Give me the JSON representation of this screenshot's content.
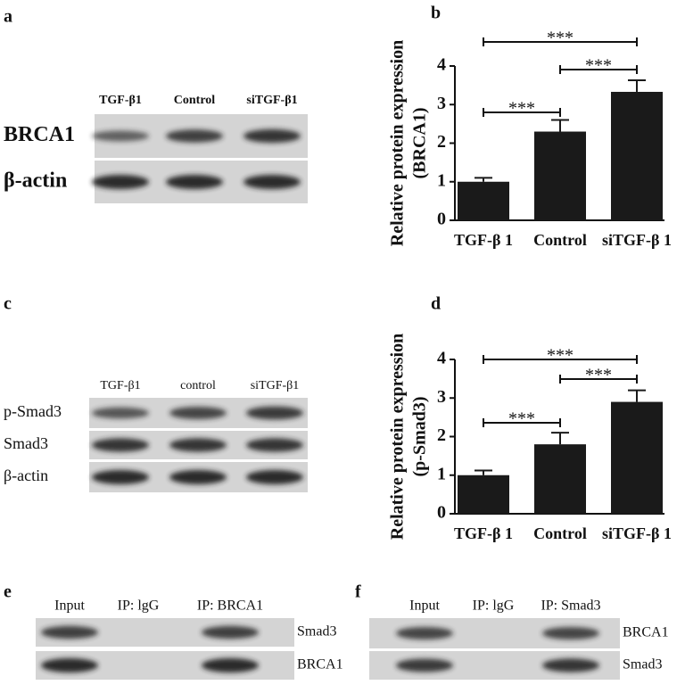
{
  "panels": {
    "a": {
      "label": "a",
      "lanes": [
        "TGF-β1",
        "Control",
        "siTGF-β1"
      ],
      "rows": [
        "BRCA1",
        "β-actin"
      ]
    },
    "c": {
      "label": "c",
      "lanes": [
        "TGF-β1",
        "control",
        "siTGF-β1"
      ],
      "rows": [
        "p-Smad3",
        "Smad3",
        "β-actin"
      ]
    },
    "e": {
      "label": "e",
      "lanes": [
        "Input",
        "IP: lgG",
        "IP: BRCA1"
      ],
      "rows": [
        "Smad3",
        "BRCA1"
      ]
    },
    "f": {
      "label": "f",
      "lanes": [
        "Input",
        "IP: lgG",
        "IP: Smad3"
      ],
      "rows": [
        "BRCA1",
        "Smad3"
      ]
    }
  },
  "chart_data": [
    {
      "type": "bar",
      "panel": "b",
      "ylabel": [
        "Relative protein expression",
        "(BRCA1)"
      ],
      "categories": [
        "TGF-β 1",
        "Control",
        "siTGF-β 1"
      ],
      "values": [
        1.0,
        2.3,
        3.33
      ],
      "errors": [
        0.1,
        0.3,
        0.3
      ],
      "color": "#1a1a1a",
      "ylim": [
        0,
        4
      ],
      "yticks": [
        0,
        1,
        2,
        3,
        4
      ],
      "annotations": [
        "***",
        "***",
        "***"
      ]
    },
    {
      "type": "bar",
      "panel": "d",
      "ylabel": [
        "Relative protein expression",
        "(p-Smad3)"
      ],
      "categories": [
        "TGF-β 1",
        "Control",
        "siTGF-β 1"
      ],
      "values": [
        1.0,
        1.8,
        2.9
      ],
      "errors": [
        0.12,
        0.3,
        0.3
      ],
      "color": "#1a1a1a",
      "ylim": [
        0,
        4
      ],
      "yticks": [
        0,
        1,
        2,
        3,
        4
      ],
      "annotations": [
        "***",
        "***",
        "***"
      ]
    }
  ]
}
